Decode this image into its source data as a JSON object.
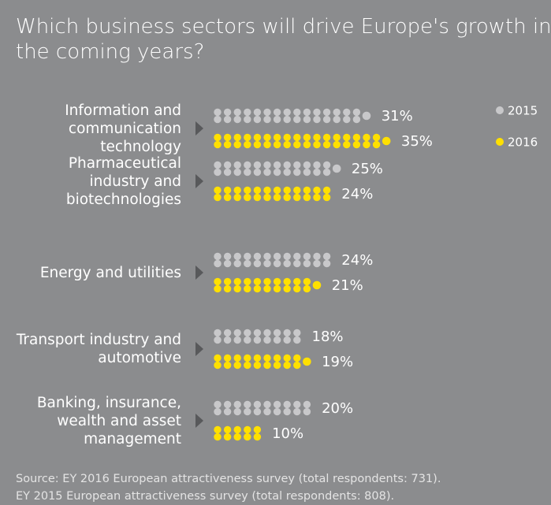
{
  "chart_data": {
    "type": "dot_bar",
    "title": "Which business sectors will drive Europe's growth in the coming years?",
    "categories": [
      "Information and communication technology",
      "Pharmaceutical industry and biotechnologies",
      "Energy and utilities",
      "Transport industry and automotive",
      "Banking, insurance, wealth and asset management"
    ],
    "series": [
      {
        "name": "2015",
        "color": "#c8c8ca",
        "values": [
          31,
          25,
          24,
          18,
          20
        ],
        "value_labels": [
          "31%",
          "25%",
          "24%",
          "18%",
          "20%"
        ]
      },
      {
        "name": "2016",
        "color": "#ffe000",
        "values": [
          35,
          24,
          21,
          19,
          10
        ],
        "value_labels": [
          "35%",
          "24%",
          "21%",
          "19%",
          "10%"
        ]
      }
    ],
    "source": [
      "Source: EY 2016 European attractiveness survey (total respondents: 731).",
      "EY 2015 European attractiveness survey (total respondents: 808)."
    ]
  }
}
